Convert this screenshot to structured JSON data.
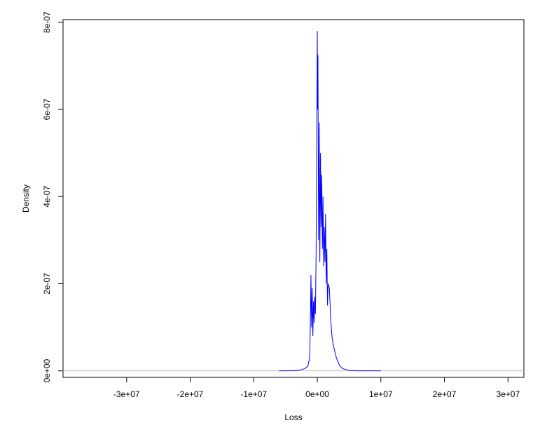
{
  "chart_data": {
    "type": "line",
    "x_label": "Loss",
    "y_label": "Density",
    "x": [
      -6000000.0,
      -4000000.0,
      -3000000.0,
      -2000000.0,
      -1500000.0,
      -1200000.0,
      -1100000.0,
      -1000000.0,
      -900000.0,
      -800000.0,
      -700000.0,
      -600000.0,
      -500000.0,
      -400000.0,
      -300000.0,
      -200000.0,
      -100000.0,
      0,
      50000.0,
      100000.0,
      200000.0,
      300000.0,
      400000.0,
      500000.0,
      600000.0,
      700000.0,
      800000.0,
      900000.0,
      1000000.0,
      1100000.0,
      1200000.0,
      1300000.0,
      1400000.0,
      1500000.0,
      1600000.0,
      1700000.0,
      1900000.0,
      2100000.0,
      2300000.0,
      2500000.0,
      3000000.0,
      3500000.0,
      4000000.0,
      5000000.0,
      6000000.0,
      8000000.0,
      10000000.0
    ],
    "series": [
      {
        "name": "Density",
        "color": "#0000ff",
        "values": [
          0,
          2e-10,
          1e-09,
          5e-09,
          1e-08,
          3e-08,
          1e-07,
          2.2e-07,
          1e-07,
          1.9e-07,
          8e-08,
          1.6e-07,
          1.1e-07,
          1.7e-07,
          1.3e-07,
          2.5e-07,
          4.8e-07,
          7.8e-07,
          6e-07,
          7.25e-07,
          3e-07,
          5.7e-07,
          2.5e-07,
          5e-07,
          3.3e-07,
          4.5e-07,
          2.8e-07,
          4e-07,
          2.4e-07,
          3.3e-07,
          2.5e-07,
          3.6e-07,
          2e-07,
          2.8e-07,
          1.5e-07,
          2e-07,
          1.9e-07,
          1.2e-07,
          8e-08,
          6e-08,
          3e-08,
          1.2e-08,
          5e-09,
          1e-09,
          2e-10,
          0,
          0
        ]
      }
    ],
    "xlim": [
      -40000000.0,
      32500000.0
    ],
    "ylim": [
      -1.5e-08,
      8.06e-07
    ],
    "xticks": [
      {
        "value": -30000000.0,
        "label": "-3e+07"
      },
      {
        "value": -20000000.0,
        "label": "-2e+07"
      },
      {
        "value": -10000000.0,
        "label": "-1e+07"
      },
      {
        "value": 0,
        "label": "0e+00"
      },
      {
        "value": 10000000.0,
        "label": "1e+07"
      },
      {
        "value": 20000000.0,
        "label": "2e+07"
      },
      {
        "value": 30000000.0,
        "label": "3e+07"
      }
    ],
    "yticks": [
      {
        "value": 0,
        "label": "0e+00"
      },
      {
        "value": 2e-07,
        "label": "2e-07"
      },
      {
        "value": 4e-07,
        "label": "4e-07"
      },
      {
        "value": 6e-07,
        "label": "6e-07"
      },
      {
        "value": 8e-07,
        "label": "8e-07"
      }
    ]
  }
}
